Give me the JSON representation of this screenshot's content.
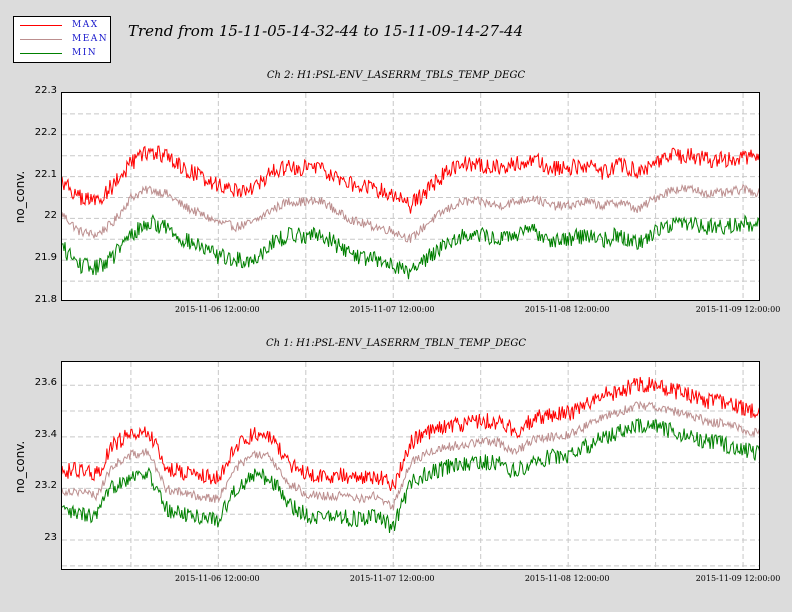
{
  "title": "Trend from 15-11-05-14-32-44 to 15-11-09-14-27-44",
  "legend": [
    {
      "label": "MAX",
      "color": "#ff0000"
    },
    {
      "label": "MEAN",
      "color": "#bc8f8f"
    },
    {
      "label": "MIN",
      "color": "#008000"
    }
  ],
  "chart_data": [
    {
      "type": "line",
      "title": "Ch 2: H1:PSL-ENV_LASERRM_TBLS_TEMP_DEGC",
      "ylabel": "no_conv.",
      "xlabel": "",
      "ylim": [
        21.8,
        22.3
      ],
      "yticks": [
        "21.8",
        "21.9",
        "22",
        "22.1",
        "22.2",
        "22.3"
      ],
      "xticks": [
        "2015-11-06 12:00:00",
        "2015-11-07 12:00:00",
        "2015-11-08 12:00:00",
        "2015-11-09 12:00:00"
      ],
      "xlim_days": [
        5.6061,
        9.6026
      ],
      "xtick_days": [
        6.5,
        7.5,
        8.5,
        9.5
      ],
      "grid": true,
      "x_days": [
        5.61,
        5.7,
        5.8,
        5.9,
        6.0,
        6.1,
        6.2,
        6.3,
        6.4,
        6.5,
        6.6,
        6.7,
        6.8,
        6.9,
        7.0,
        7.1,
        7.2,
        7.3,
        7.4,
        7.5,
        7.6,
        7.7,
        7.8,
        7.9,
        8.0,
        8.1,
        8.2,
        8.3,
        8.4,
        8.5,
        8.6,
        8.7,
        8.8,
        8.9,
        9.0,
        9.1,
        9.2,
        9.3,
        9.4,
        9.5,
        9.6
      ],
      "series": [
        {
          "name": "MAX",
          "values": [
            22.09,
            22.05,
            22.04,
            22.08,
            22.13,
            22.16,
            22.15,
            22.12,
            22.1,
            22.08,
            22.07,
            22.07,
            22.11,
            22.12,
            22.12,
            22.12,
            22.09,
            22.08,
            22.07,
            22.06,
            22.03,
            22.07,
            22.11,
            22.13,
            22.13,
            22.12,
            22.13,
            22.14,
            22.12,
            22.12,
            22.13,
            22.11,
            22.13,
            22.11,
            22.13,
            22.15,
            22.15,
            22.14,
            22.14,
            22.15,
            22.14
          ]
        },
        {
          "name": "MEAN",
          "values": [
            22.01,
            21.97,
            21.96,
            21.99,
            22.05,
            22.07,
            22.06,
            22.03,
            22.01,
            21.99,
            21.98,
            21.99,
            22.02,
            22.04,
            22.04,
            22.04,
            22.01,
            21.99,
            21.98,
            21.97,
            21.95,
            21.99,
            22.02,
            22.04,
            22.04,
            22.03,
            22.04,
            22.05,
            22.03,
            22.03,
            22.04,
            22.03,
            22.04,
            22.02,
            22.05,
            22.07,
            22.07,
            22.06,
            22.06,
            22.07,
            22.06
          ]
        },
        {
          "name": "MIN",
          "values": [
            21.93,
            21.89,
            21.88,
            21.91,
            21.96,
            21.99,
            21.98,
            21.95,
            21.93,
            21.91,
            21.9,
            21.9,
            21.94,
            21.96,
            21.96,
            21.96,
            21.93,
            21.91,
            21.9,
            21.89,
            21.87,
            21.91,
            21.94,
            21.96,
            21.96,
            21.95,
            21.96,
            21.97,
            21.95,
            21.95,
            21.96,
            21.95,
            21.96,
            21.94,
            21.97,
            21.99,
            21.99,
            21.98,
            21.98,
            21.99,
            21.98
          ]
        }
      ]
    },
    {
      "type": "line",
      "title": "Ch 1: H1:PSL-ENV_LASERRM_TBLN_TEMP_DEGC",
      "ylabel": "no_conv.",
      "xlabel": "",
      "ylim": [
        22.88,
        23.69
      ],
      "yticks": [
        "23",
        "23.2",
        "23.4",
        "23.6"
      ],
      "xticks": [
        "2015-11-06 12:00:00",
        "2015-11-07 12:00:00",
        "2015-11-08 12:00:00",
        "2015-11-09 12:00:00"
      ],
      "xlim_days": [
        5.6061,
        9.6026
      ],
      "xtick_days": [
        6.5,
        7.5,
        8.5,
        9.5
      ],
      "grid": true,
      "x_days": [
        5.61,
        5.7,
        5.8,
        5.9,
        6.0,
        6.1,
        6.2,
        6.3,
        6.4,
        6.5,
        6.6,
        6.7,
        6.8,
        6.9,
        7.0,
        7.1,
        7.2,
        7.3,
        7.4,
        7.5,
        7.6,
        7.7,
        7.8,
        7.9,
        8.0,
        8.1,
        8.2,
        8.3,
        8.4,
        8.5,
        8.6,
        8.7,
        8.8,
        8.9,
        9.0,
        9.1,
        9.2,
        9.3,
        9.4,
        9.5,
        9.6
      ],
      "series": [
        {
          "name": "MAX",
          "values": [
            23.27,
            23.27,
            23.25,
            23.37,
            23.41,
            23.42,
            23.28,
            23.26,
            23.25,
            23.24,
            23.36,
            23.41,
            23.4,
            23.3,
            23.26,
            23.25,
            23.25,
            23.24,
            23.25,
            23.21,
            23.38,
            23.42,
            23.44,
            23.45,
            23.46,
            23.46,
            23.42,
            23.47,
            23.48,
            23.49,
            23.52,
            23.56,
            23.58,
            23.6,
            23.6,
            23.58,
            23.56,
            23.54,
            23.53,
            23.51,
            23.49
          ]
        },
        {
          "name": "MEAN",
          "values": [
            23.19,
            23.19,
            23.17,
            23.29,
            23.33,
            23.34,
            23.2,
            23.18,
            23.17,
            23.16,
            23.28,
            23.33,
            23.32,
            23.22,
            23.18,
            23.17,
            23.17,
            23.16,
            23.17,
            23.13,
            23.3,
            23.34,
            23.36,
            23.37,
            23.38,
            23.38,
            23.34,
            23.39,
            23.4,
            23.41,
            23.44,
            23.48,
            23.5,
            23.52,
            23.52,
            23.5,
            23.48,
            23.46,
            23.45,
            23.43,
            23.41
          ]
        },
        {
          "name": "MIN",
          "values": [
            23.11,
            23.1,
            23.09,
            23.21,
            23.25,
            23.26,
            23.12,
            23.1,
            23.09,
            23.08,
            23.2,
            23.25,
            23.24,
            23.14,
            23.1,
            23.09,
            23.09,
            23.08,
            23.09,
            23.05,
            23.22,
            23.26,
            23.28,
            23.29,
            23.3,
            23.3,
            23.26,
            23.31,
            23.32,
            23.33,
            23.36,
            23.4,
            23.42,
            23.44,
            23.44,
            23.42,
            23.4,
            23.38,
            23.37,
            23.35,
            23.33
          ]
        }
      ]
    }
  ]
}
